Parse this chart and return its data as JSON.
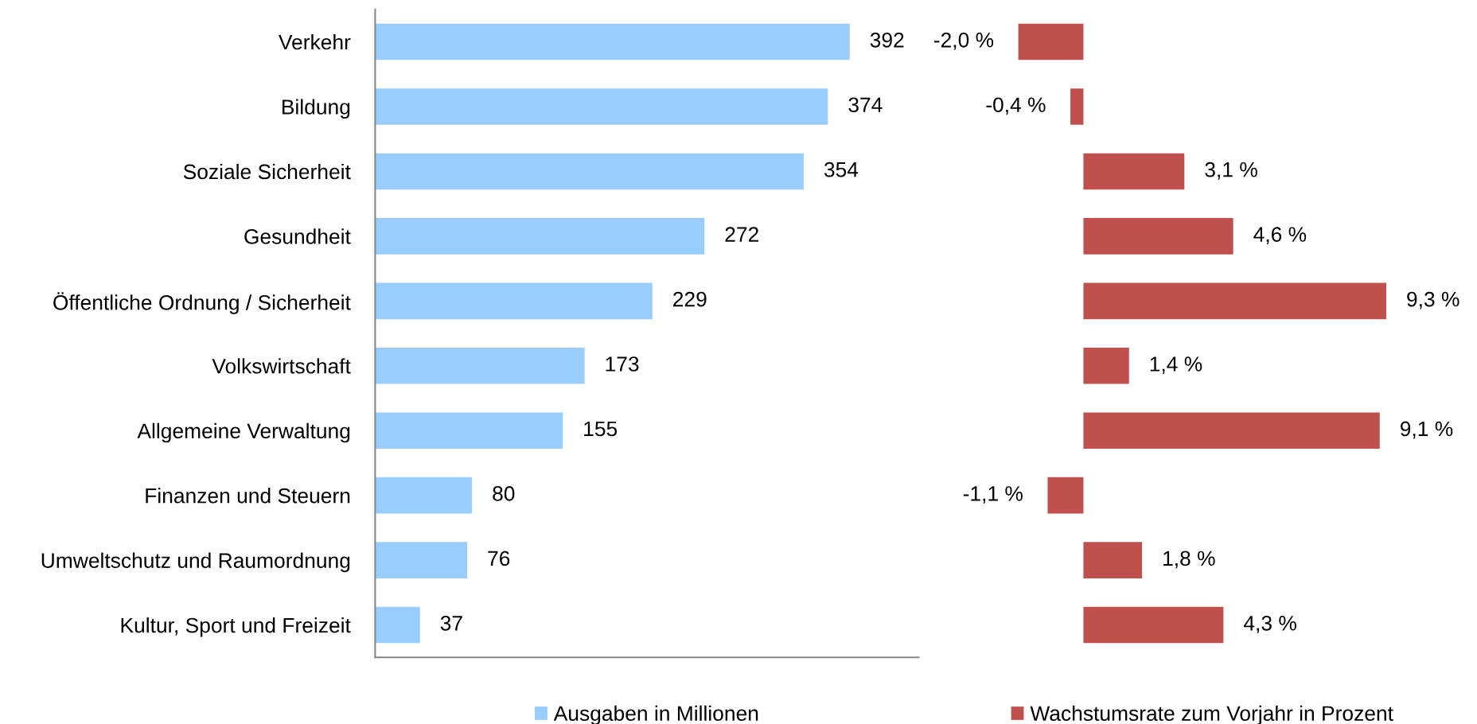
{
  "chart_data": [
    {
      "type": "bar",
      "orientation": "horizontal",
      "categories": [
        "Verkehr",
        "Bildung",
        "Soziale Sicherheit",
        "Gesundheit",
        "Öffentliche Ordnung / Sicherheit",
        "Volkswirtschaft",
        "Allgemeine Verwaltung",
        "Finanzen und Steuern",
        "Umweltschutz und Raumordnung",
        "Kultur, Sport und Freizeit"
      ],
      "series": [
        {
          "name": "Ausgaben in Millionen",
          "color": "#99ccff",
          "values": [
            392,
            374,
            354,
            272,
            229,
            173,
            155,
            80,
            76,
            37
          ]
        }
      ],
      "xlim": [
        0,
        449
      ],
      "data_labels": true,
      "tick_labels": "y",
      "legend": "bottom",
      "grid": false
    },
    {
      "type": "bar",
      "orientation": "horizontal",
      "categories": [
        null,
        null,
        null,
        null,
        null,
        null,
        null,
        null,
        null,
        null
      ],
      "series": [
        {
          "name": "Wachstumsrate zum Vorjahr in Prozent",
          "color": "#c0504d",
          "values": [
            -2.0,
            -0.4,
            3.1,
            4.6,
            9.3,
            1.4,
            9.1,
            -1.1,
            1.8,
            4.3
          ],
          "value_labels": [
            "-2,0 %",
            "-0,4 %",
            "3,1 %",
            "4,6 %",
            "9,3 %",
            "1,4 %",
            "9,1 %",
            "-1,1 %",
            "1,8 %",
            "4,3 %"
          ]
        }
      ],
      "tick_labels": false,
      "legend": "bottom",
      "grid": false
    }
  ]
}
